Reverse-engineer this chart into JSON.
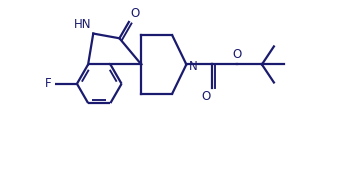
{
  "bg_color": "#ffffff",
  "line_color": "#1a1a6e",
  "line_width": 1.6,
  "font_size": 8.5,
  "figsize": [
    3.47,
    1.83
  ],
  "dpi": 100,
  "xlim": [
    -1.6,
    4.5
  ],
  "ylim": [
    -2.2,
    2.0
  ]
}
